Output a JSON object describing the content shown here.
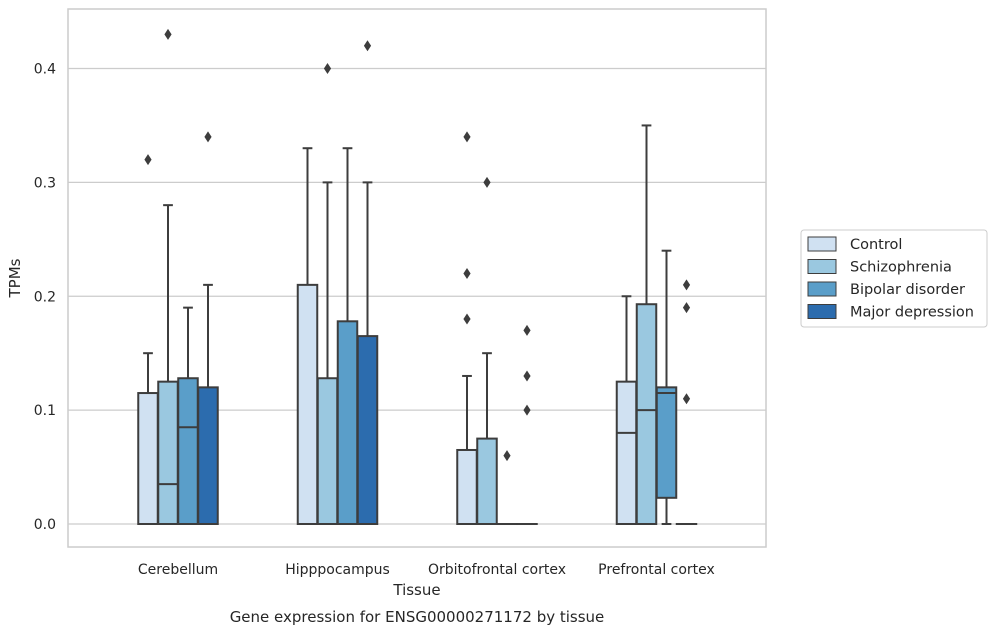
{
  "caption": "Gene expression for ENSG00000271172 by tissue",
  "chart_data": {
    "type": "box",
    "xlabel": "Tissue",
    "ylabel": "TPMs",
    "ylim": [
      -0.021,
      0.454
    ],
    "yticks": [
      0.0,
      0.1,
      0.2,
      0.3,
      0.4
    ],
    "ytick_labels": [
      "0.0",
      "0.1",
      "0.2",
      "0.3",
      "0.4"
    ],
    "grid": "horizontal",
    "legend_position": "right",
    "categories": [
      "Cerebellum",
      "Hipppocampus",
      "Orbitofrontal cortex",
      "Prefrontal cortex"
    ],
    "series": [
      {
        "name": "Control",
        "color": "#d0e1f2",
        "boxes": [
          {
            "whislo": 0.0,
            "q1": 0.0,
            "med": 0.0,
            "q3": 0.115,
            "whishi": 0.15,
            "fliers": [
              0.32
            ]
          },
          {
            "whislo": 0.0,
            "q1": 0.0,
            "med": 0.0,
            "q3": 0.21,
            "whishi": 0.33,
            "fliers": []
          },
          {
            "whislo": 0.0,
            "q1": 0.0,
            "med": 0.0,
            "q3": 0.065,
            "whishi": 0.13,
            "fliers": [
              0.34,
              0.22,
              0.18
            ]
          },
          {
            "whislo": 0.0,
            "q1": 0.0,
            "med": 0.08,
            "q3": 0.125,
            "whishi": 0.2,
            "fliers": []
          }
        ]
      },
      {
        "name": "Schizophrenia",
        "color": "#9ac8e0",
        "boxes": [
          {
            "whislo": 0.0,
            "q1": 0.0,
            "med": 0.035,
            "q3": 0.125,
            "whishi": 0.28,
            "fliers": [
              0.43
            ]
          },
          {
            "whislo": 0.0,
            "q1": 0.0,
            "med": 0.0,
            "q3": 0.128,
            "whishi": 0.3,
            "fliers": [
              0.4
            ]
          },
          {
            "whislo": 0.0,
            "q1": 0.0,
            "med": 0.0,
            "q3": 0.075,
            "whishi": 0.15,
            "fliers": [
              0.3
            ]
          },
          {
            "whislo": 0.0,
            "q1": 0.0,
            "med": 0.1,
            "q3": 0.193,
            "whishi": 0.35,
            "fliers": []
          }
        ]
      },
      {
        "name": "Bipolar disorder",
        "color": "#5a9ec9",
        "boxes": [
          {
            "whislo": 0.0,
            "q1": 0.0,
            "med": 0.085,
            "q3": 0.128,
            "whishi": 0.19,
            "fliers": []
          },
          {
            "whislo": 0.0,
            "q1": 0.0,
            "med": 0.0,
            "q3": 0.178,
            "whishi": 0.33,
            "fliers": []
          },
          {
            "whislo": 0.0,
            "q1": 0.0,
            "med": 0.0,
            "q3": 0.0,
            "whishi": 0.0,
            "fliers": [
              0.06
            ]
          },
          {
            "whislo": 0.0,
            "q1": 0.023,
            "med": 0.115,
            "q3": 0.12,
            "whishi": 0.24,
            "fliers": []
          }
        ]
      },
      {
        "name": "Major depression",
        "color": "#2c6cae",
        "boxes": [
          {
            "whislo": 0.0,
            "q1": 0.0,
            "med": 0.0,
            "q3": 0.12,
            "whishi": 0.21,
            "fliers": [
              0.34
            ]
          },
          {
            "whislo": 0.0,
            "q1": 0.0,
            "med": 0.0,
            "q3": 0.165,
            "whishi": 0.3,
            "fliers": [
              0.42
            ]
          },
          {
            "whislo": 0.0,
            "q1": 0.0,
            "med": 0.0,
            "q3": 0.0,
            "whishi": 0.0,
            "fliers": [
              0.17,
              0.13,
              0.1
            ]
          },
          {
            "whislo": 0.0,
            "q1": 0.0,
            "med": 0.0,
            "q3": 0.0,
            "whishi": 0.0,
            "fliers": [
              0.21,
              0.19,
              0.11
            ]
          }
        ]
      }
    ]
  }
}
